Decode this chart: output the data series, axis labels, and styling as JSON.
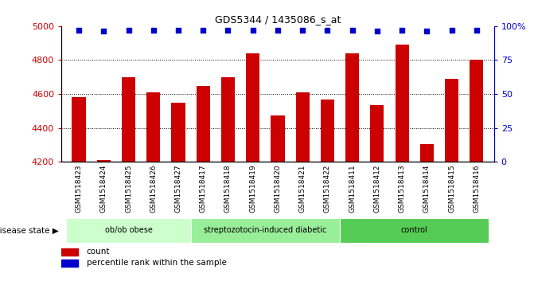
{
  "title": "GDS5344 / 1435086_s_at",
  "samples": [
    "GSM1518423",
    "GSM1518424",
    "GSM1518425",
    "GSM1518426",
    "GSM1518427",
    "GSM1518417",
    "GSM1518418",
    "GSM1518419",
    "GSM1518420",
    "GSM1518421",
    "GSM1518422",
    "GSM1518411",
    "GSM1518412",
    "GSM1518413",
    "GSM1518414",
    "GSM1518415",
    "GSM1518416"
  ],
  "counts": [
    4580,
    4210,
    4700,
    4610,
    4550,
    4645,
    4700,
    4840,
    4475,
    4610,
    4565,
    4840,
    4535,
    4890,
    4305,
    4690,
    4800
  ],
  "percentile_ranks": [
    97,
    96,
    97,
    97,
    97,
    97,
    97,
    97,
    97,
    97,
    97,
    97,
    96,
    97,
    96,
    97,
    97
  ],
  "groups": {
    "ob/ob obese": [
      0,
      5
    ],
    "streptozotocin-induced diabetic": [
      5,
      11
    ],
    "control": [
      11,
      17
    ]
  },
  "group_colors_map": {
    "ob/ob obese": "#ccffcc",
    "streptozotocin-induced diabetic": "#99ee99",
    "control": "#55cc55"
  },
  "bar_color": "#cc0000",
  "dot_color": "#0000cc",
  "ylim_left": [
    4200,
    5000
  ],
  "ylim_right": [
    0,
    100
  ],
  "yticks_left": [
    4200,
    4400,
    4600,
    4800,
    5000
  ],
  "yticks_right": [
    0,
    25,
    50,
    75,
    100
  ],
  "ytick_labels_right": [
    "0",
    "25",
    "50",
    "75",
    "100%"
  ],
  "grid_values": [
    4400,
    4600,
    4800
  ],
  "background_color": "#ffffff",
  "xtick_bg_color": "#dddddd",
  "legend_count_label": "count",
  "legend_percentile_label": "percentile rank within the sample"
}
